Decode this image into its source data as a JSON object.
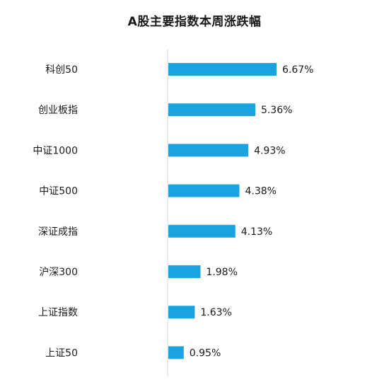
{
  "chart_data": {
    "type": "bar",
    "orientation": "horizontal",
    "title": "A股主要指数本周涨跌幅",
    "categories": [
      "科创50",
      "创业板指",
      "中证1000",
      "中证500",
      "深证成指",
      "沪深300",
      "上证指数",
      "上证50"
    ],
    "values": [
      6.67,
      5.36,
      4.93,
      4.38,
      4.13,
      1.98,
      1.63,
      0.95
    ],
    "value_labels": [
      "6.67%",
      "5.36%",
      "4.93%",
      "4.38%",
      "4.13%",
      "1.98%",
      "1.63%",
      "0.95%"
    ],
    "xlabel": "",
    "ylabel": "",
    "xlim": [
      0,
      13
    ],
    "grid": false,
    "legend": "none",
    "colors": {
      "bar": "#1aa3df",
      "axis": "#d9d9d9",
      "text": "#1a1a1a"
    }
  }
}
